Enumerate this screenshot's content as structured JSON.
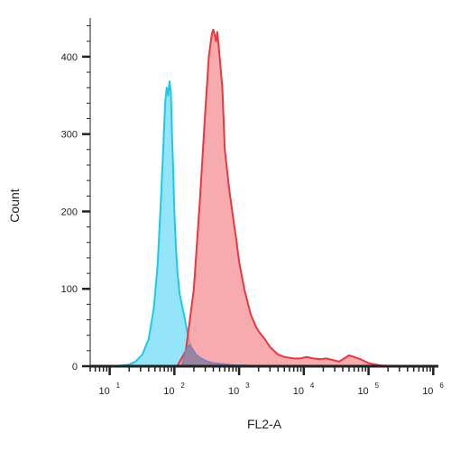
{
  "chart_data": {
    "type": "area",
    "xlabel": "FL2-A",
    "ylabel": "Count",
    "xscale": "log",
    "xlim": [
      5,
      1200000
    ],
    "ylim": [
      0,
      450
    ],
    "yticks": [
      0,
      100,
      200,
      300,
      400
    ],
    "xticks": [
      {
        "value": 10,
        "base": "10",
        "exp": "1"
      },
      {
        "value": 100,
        "base": "10",
        "exp": "2"
      },
      {
        "value": 1000,
        "base": "10",
        "exp": "3"
      },
      {
        "value": 10000,
        "base": "10",
        "exp": "4"
      },
      {
        "value": 100000,
        "base": "10",
        "exp": "5"
      },
      {
        "value": 1000000,
        "base": "10",
        "exp": "6"
      }
    ],
    "grid": false,
    "series": [
      {
        "stroke": "#1ec8ea",
        "fill": "#70dcf7",
        "x": [
          12,
          20,
          25,
          32,
          40,
          48,
          55,
          62,
          68,
          72,
          76,
          80,
          84,
          88,
          92,
          96,
          100,
          106,
          112,
          120,
          130,
          140,
          155,
          170,
          190,
          220,
          260,
          320,
          400,
          500,
          650,
          900,
          1200,
          1600,
          2000
        ],
        "y": [
          0,
          2,
          6,
          15,
          35,
          75,
          130,
          215,
          290,
          340,
          360,
          350,
          368,
          355,
          300,
          250,
          200,
          150,
          120,
          95,
          80,
          68,
          48,
          32,
          22,
          14,
          10,
          6,
          4,
          3,
          2,
          1,
          1,
          0,
          0
        ]
      },
      {
        "stroke": "#e8383f",
        "fill": "#f58f93",
        "x": [
          110,
          150,
          200,
          250,
          300,
          340,
          380,
          400,
          420,
          440,
          460,
          500,
          550,
          600,
          700,
          800,
          900,
          1000,
          1200,
          1500,
          1800,
          2000,
          2500,
          3000,
          4000,
          5000,
          7000,
          9000,
          11000,
          14000,
          18000,
          22000,
          28000,
          35000,
          42000,
          50000,
          60000,
          80000,
          100000,
          150000,
          300000,
          1200000
        ],
        "y": [
          0,
          20,
          100,
          220,
          330,
          400,
          430,
          435,
          428,
          420,
          432,
          400,
          360,
          280,
          230,
          195,
          165,
          135,
          100,
          68,
          52,
          45,
          35,
          25,
          15,
          12,
          10,
          10,
          12,
          10,
          9,
          10,
          8,
          6,
          10,
          14,
          12,
          8,
          4,
          1,
          0,
          0
        ]
      },
      {
        "stroke": "#8b7fb0",
        "fill": "#8e7f9f",
        "x": [
          130,
          150,
          170,
          190,
          220,
          260,
          320,
          400,
          500,
          650,
          900,
          1200,
          1600
        ],
        "y": [
          0,
          20,
          28,
          22,
          14,
          10,
          6,
          4,
          3,
          2,
          1,
          1,
          0
        ]
      }
    ]
  }
}
